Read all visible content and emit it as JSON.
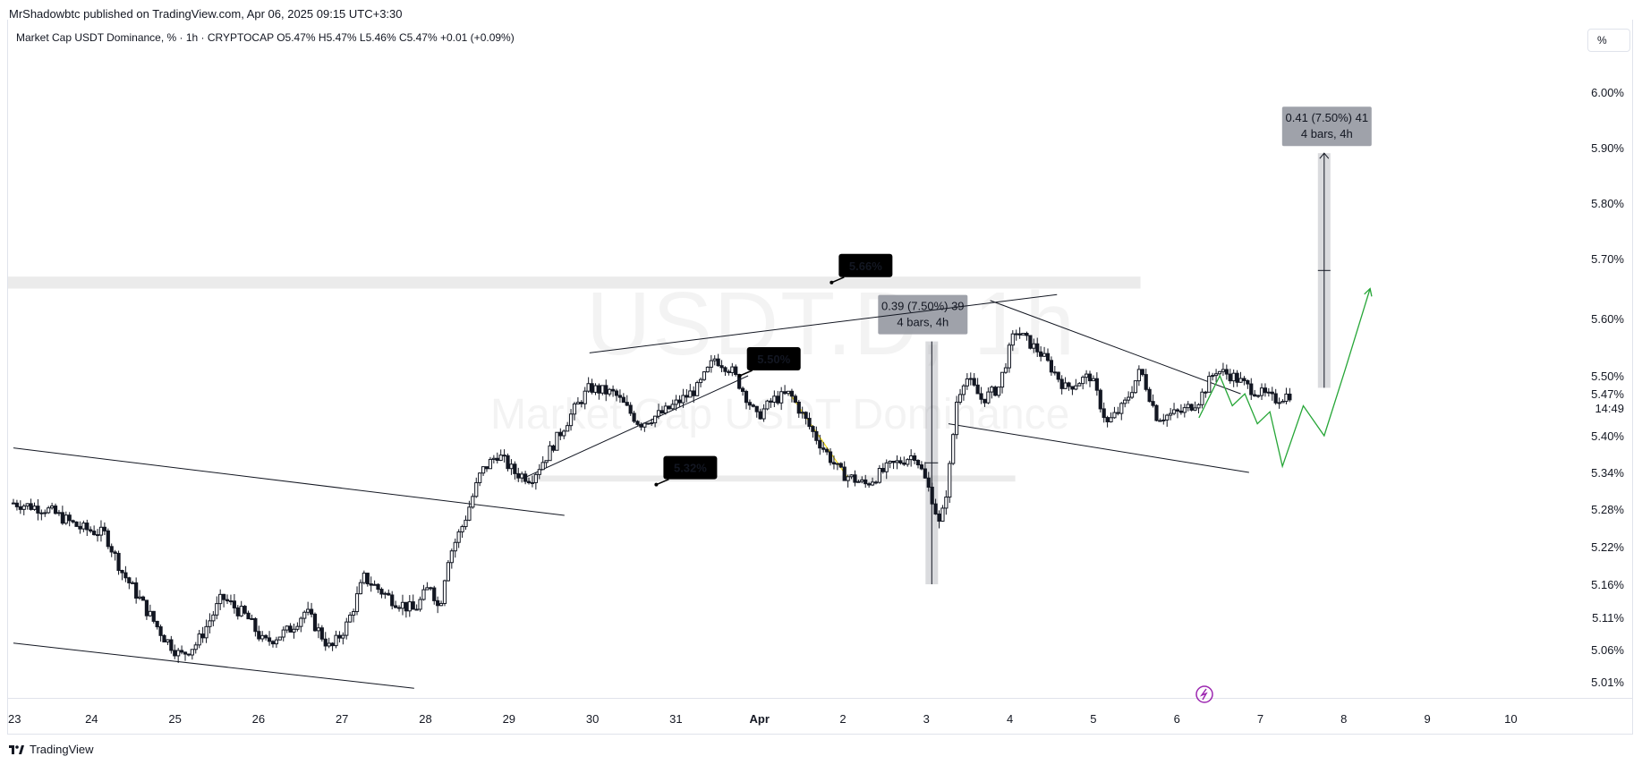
{
  "header": {
    "credit": "MrShadowbtc published on TradingView.com, Apr 06, 2025 09:15 UTC+3:30",
    "legend": "Market Cap USDT Dominance, % · 1h · CRYPTOCAP  O5.47%  H5.47%  L5.46%  C5.47%  +0.01 (+0.09%)"
  },
  "toolbar": {
    "percent_button": "%"
  },
  "watermark": {
    "symbol": "USDT.D, 1h",
    "description": "Market Cap USDT Dominance"
  },
  "footer": {
    "brand": "TradingView"
  },
  "colors": {
    "candle": "#131722",
    "up_line": "#26a637",
    "fib_line": "#f5d90a",
    "label_bg": "#000000",
    "range_bg": "#9598a1",
    "zone": "#ebebeb",
    "alert": "#9c27b0"
  },
  "chart_data": {
    "type": "candlestick",
    "title": "",
    "ylabel": "",
    "xlabel": "",
    "y_ticks": [
      "6.00%",
      "5.90%",
      "5.80%",
      "5.70%",
      "5.60%",
      "5.50%",
      "5.40%",
      "5.34%",
      "5.28%",
      "5.22%",
      "5.16%",
      "5.11%",
      "5.06%",
      "5.01%"
    ],
    "y_tick_values": [
      6.0,
      5.9,
      5.8,
      5.7,
      5.6,
      5.5,
      5.4,
      5.34,
      5.28,
      5.22,
      5.16,
      5.11,
      5.06,
      5.01
    ],
    "x_ticks": [
      "23",
      "24",
      "25",
      "26",
      "27",
      "28",
      "29",
      "30",
      "31",
      "Apr",
      "2",
      "3",
      "4",
      "5",
      "6",
      "7",
      "8",
      "9",
      "10"
    ],
    "x_tick_values": [
      0,
      1,
      2,
      3,
      4,
      5,
      6,
      7,
      8,
      9,
      10,
      11,
      12,
      13,
      14,
      15,
      16,
      17,
      18
    ],
    "current_price": {
      "label": "5.47%",
      "countdown": "14:49",
      "value": 5.47
    },
    "series": [
      {
        "price_path": [
          [
            0.0,
            5.29
          ],
          [
            0.4,
            5.28
          ],
          [
            0.8,
            5.25
          ],
          [
            1.1,
            5.24
          ],
          [
            1.3,
            5.18
          ],
          [
            1.6,
            5.12
          ],
          [
            1.8,
            5.08
          ],
          [
            2.0,
            5.05
          ],
          [
            2.2,
            5.07
          ],
          [
            2.5,
            5.14
          ],
          [
            2.8,
            5.11
          ],
          [
            3.0,
            5.07
          ],
          [
            3.3,
            5.09
          ],
          [
            3.5,
            5.12
          ],
          [
            3.8,
            5.06
          ],
          [
            4.0,
            5.1
          ],
          [
            4.2,
            5.17
          ],
          [
            4.5,
            5.14
          ],
          [
            4.8,
            5.12
          ],
          [
            5.0,
            5.16
          ],
          [
            5.1,
            5.12
          ],
          [
            5.2,
            5.2
          ],
          [
            5.4,
            5.26
          ],
          [
            5.6,
            5.34
          ],
          [
            5.8,
            5.37
          ],
          [
            6.0,
            5.34
          ],
          [
            6.2,
            5.33
          ],
          [
            6.4,
            5.37
          ],
          [
            6.7,
            5.44
          ],
          [
            6.9,
            5.48
          ],
          [
            7.2,
            5.47
          ],
          [
            7.5,
            5.42
          ],
          [
            7.8,
            5.44
          ],
          [
            8.0,
            5.46
          ],
          [
            8.2,
            5.48
          ],
          [
            8.4,
            5.53
          ],
          [
            8.6,
            5.51
          ],
          [
            8.8,
            5.46
          ],
          [
            8.9,
            5.43
          ],
          [
            9.1,
            5.46
          ],
          [
            9.3,
            5.47
          ],
          [
            9.6,
            5.4
          ],
          [
            9.9,
            5.34
          ],
          [
            10.2,
            5.32
          ],
          [
            10.5,
            5.35
          ],
          [
            10.8,
            5.37
          ],
          [
            11.0,
            5.3
          ],
          [
            11.1,
            5.25
          ],
          [
            11.2,
            5.33
          ],
          [
            11.3,
            5.46
          ],
          [
            11.4,
            5.5
          ],
          [
            11.6,
            5.46
          ],
          [
            11.8,
            5.48
          ],
          [
            12.0,
            5.58
          ],
          [
            12.3,
            5.54
          ],
          [
            12.6,
            5.48
          ],
          [
            12.9,
            5.5
          ],
          [
            13.1,
            5.42
          ],
          [
            13.3,
            5.45
          ],
          [
            13.5,
            5.51
          ],
          [
            13.7,
            5.43
          ],
          [
            14.0,
            5.44
          ],
          [
            14.2,
            5.46
          ],
          [
            14.4,
            5.51
          ],
          [
            14.6,
            5.5
          ],
          [
            14.8,
            5.48
          ],
          [
            15.1,
            5.46
          ],
          [
            15.3,
            5.47
          ]
        ],
        "projection": [
          [
            14.2,
            5.43
          ],
          [
            14.45,
            5.5
          ],
          [
            14.6,
            5.45
          ],
          [
            14.75,
            5.47
          ],
          [
            14.9,
            5.42
          ],
          [
            15.05,
            5.44
          ],
          [
            15.2,
            5.35
          ],
          [
            15.45,
            5.45
          ],
          [
            15.7,
            5.4
          ],
          [
            15.95,
            5.51
          ],
          [
            16.25,
            5.65
          ]
        ]
      }
    ],
    "annotations": {
      "price_labels": [
        {
          "text": "5.66%",
          "x": 9.8,
          "y": 5.66
        },
        {
          "text": "5.50%",
          "x": 8.7,
          "y": 5.5
        },
        {
          "text": "5.32%",
          "x": 7.7,
          "y": 5.32
        }
      ],
      "measure_boxes": [
        {
          "line1": "0.39 (7.50%) 39",
          "line2": "4 bars, 4h",
          "x": 11.0,
          "y_from": 5.16,
          "y_to": 5.56
        },
        {
          "line1": "0.41 (7.50%) 41",
          "line2": "4 bars, 4h",
          "x": 15.7,
          "y_from": 5.48,
          "y_to": 5.89
        }
      ],
      "resistance_zone": {
        "x_from": 0,
        "x_to": 13.5,
        "y_from": 5.65,
        "y_to": 5.67
      },
      "support_zone": {
        "x_from": 6.0,
        "x_to": 12.0,
        "y_from": 5.325,
        "y_to": 5.335
      },
      "trendlines": [
        [
          [
            0.0,
            5.38
          ],
          [
            6.6,
            5.27
          ]
        ],
        [
          [
            0.0,
            5.07
          ],
          [
            4.8,
            5.0
          ]
        ],
        [
          [
            6.9,
            5.54
          ],
          [
            12.5,
            5.64
          ]
        ],
        [
          [
            6.1,
            5.33
          ],
          [
            8.8,
            5.5
          ]
        ],
        [
          [
            11.7,
            5.63
          ],
          [
            14.7,
            5.47
          ]
        ],
        [
          [
            11.2,
            5.42
          ],
          [
            14.8,
            5.34
          ]
        ]
      ],
      "fib_segment": [
        [
          9.3,
          5.47
        ],
        [
          10.0,
          5.33
        ]
      ]
    }
  }
}
